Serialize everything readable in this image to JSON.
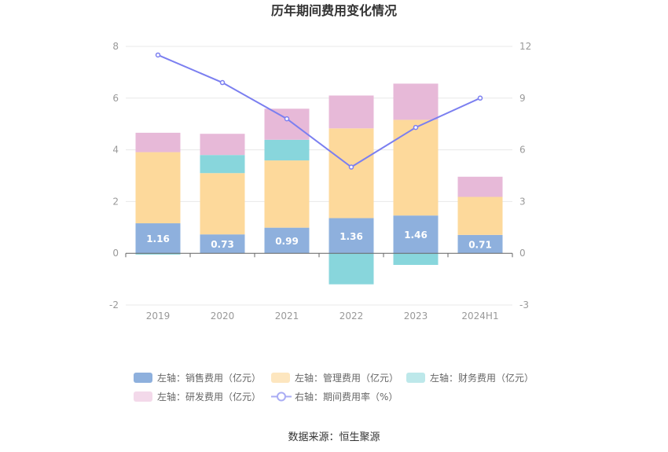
{
  "chart_data": {
    "type": "bar",
    "title": "历年期间费用变化情况",
    "categories": [
      "2019",
      "2020",
      "2021",
      "2022",
      "2023",
      "2024H1"
    ],
    "left_axis": {
      "ticks": [
        "8",
        "6",
        "4",
        "2",
        "0",
        "-2"
      ],
      "ylim": [
        -2,
        8
      ]
    },
    "right_axis": {
      "ticks": [
        "12",
        "9",
        "6",
        "3",
        "0",
        "-3"
      ],
      "ylim": [
        -3,
        12
      ]
    },
    "series": [
      {
        "name": "左轴：销售费用（亿元）",
        "axis": "left",
        "color": "#8eb0dd",
        "values": [
          1.16,
          0.73,
          0.99,
          1.36,
          1.46,
          0.71
        ],
        "labels": [
          "1.16",
          "0.73",
          "0.99",
          "1.36",
          "1.46",
          "0.71"
        ]
      },
      {
        "name": "左轴：管理费用（亿元）",
        "axis": "left",
        "color": "#fdd99b",
        "values": [
          2.75,
          2.37,
          2.6,
          3.47,
          3.7,
          1.47
        ]
      },
      {
        "name": "左轴：财务费用（亿元）",
        "axis": "left",
        "color": "#88d6dc",
        "values": [
          -0.05,
          0.7,
          0.8,
          -1.2,
          -0.45,
          0.0
        ]
      },
      {
        "name": "左轴：研发费用（亿元）",
        "axis": "left",
        "color": "#e7b9d8",
        "values": [
          0.75,
          0.82,
          1.2,
          1.27,
          1.4,
          0.78
        ]
      },
      {
        "name": "右轴：期间费用率（%）",
        "axis": "right",
        "type": "line",
        "color": "#7b7ff0",
        "values": [
          11.5,
          9.9,
          7.8,
          5.0,
          7.3,
          9.0
        ]
      }
    ]
  },
  "source_text": "数据来源：恒生聚源"
}
